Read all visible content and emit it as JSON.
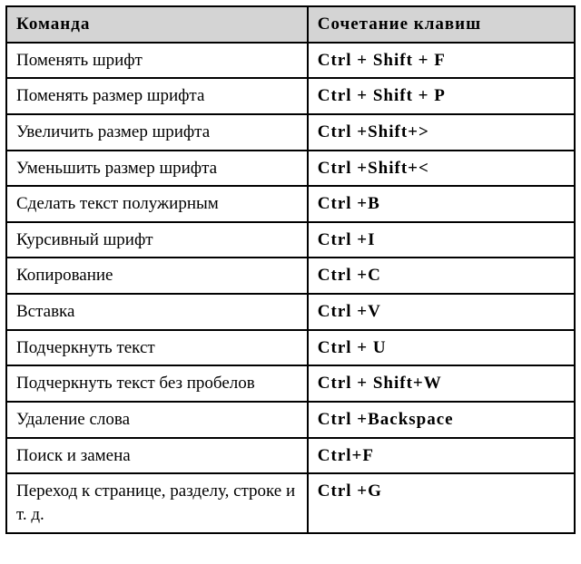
{
  "table": {
    "type": "table",
    "columns": [
      "Команда",
      "Сочетание клавиш"
    ],
    "rows": [
      [
        "Поменять шрифт",
        "Ctrl + Shift + F"
      ],
      [
        "Поменять размер шрифта",
        "Ctrl  + Shift + P"
      ],
      [
        "Увеличить размер шрифта",
        "Ctrl  +Shift+>"
      ],
      [
        "Уменьшить размер шрифта",
        "Ctrl +Shift+<"
      ],
      [
        "Сделать текст полужирным",
        "Ctrl +B"
      ],
      [
        "Курсивный шрифт",
        "Ctrl +I"
      ],
      [
        "Копирование",
        "Ctrl +C"
      ],
      [
        "Вставка",
        "Ctrl +V"
      ],
      [
        "Подчеркнуть текст",
        "Ctrl  + U"
      ],
      [
        "Подчеркнуть текст без про­белов",
        "Ctrl  + Shift+W"
      ],
      [
        "Удаление слова",
        "Ctrl +Backspace"
      ],
      [
        "Поиск и замена",
        "Ctrl+F"
      ],
      [
        "Переход к странице, разделу, строке и т. д.",
        "Ctrl +G"
      ]
    ],
    "header_bg": "#d4d4d4",
    "border_color": "#000000",
    "font_family": "Times New Roman",
    "body_fontsize": 19,
    "col_widths": [
      "53%",
      "47%"
    ]
  }
}
